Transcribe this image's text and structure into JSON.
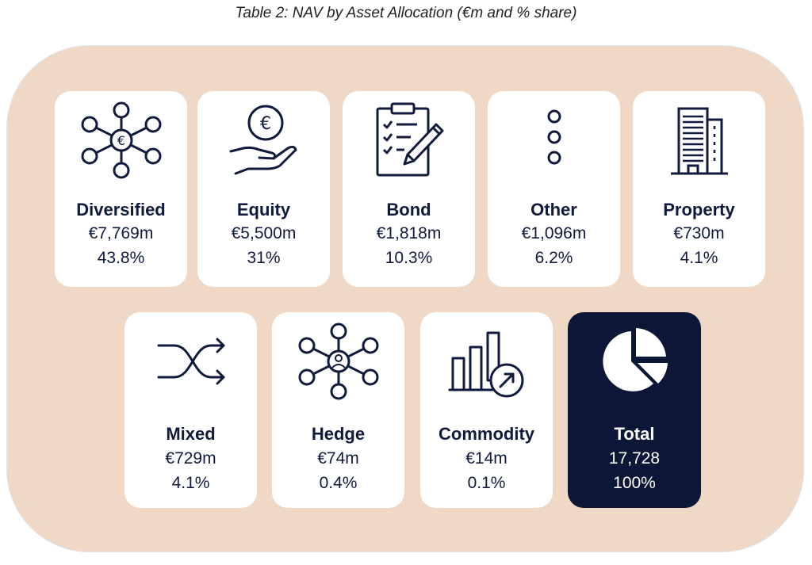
{
  "caption": "Table 2: NAV by Asset Allocation (€m and % share)",
  "colors": {
    "panel": "#efd9c6",
    "card": "#ffffff",
    "navy": "#0c1737",
    "text": "#0f1a3c"
  },
  "cards": [
    {
      "name": "Diversified",
      "value": "€7,769m",
      "share": "43.8%",
      "icon": "network-euro-icon"
    },
    {
      "name": "Equity",
      "value": "€5,500m",
      "share": "31%",
      "icon": "hand-coin-euro-icon"
    },
    {
      "name": "Bond",
      "value": "€1,818m",
      "share": "10.3%",
      "icon": "clipboard-pen-icon"
    },
    {
      "name": "Other",
      "value": "€1,096m",
      "share": "6.2%",
      "icon": "vertical-dots-icon"
    },
    {
      "name": "Property",
      "value": "€730m",
      "share": "4.1%",
      "icon": "building-icon"
    },
    {
      "name": "Mixed",
      "value": "€729m",
      "share": "4.1%",
      "icon": "shuffle-arrows-icon"
    },
    {
      "name": "Hedge",
      "value": "€74m",
      "share": "0.4%",
      "icon": "network-person-icon"
    },
    {
      "name": "Commodity",
      "value": "€14m",
      "share": "0.1%",
      "icon": "bar-chart-arrow-icon"
    },
    {
      "name": "Total",
      "value": "17,728",
      "share": "100%",
      "icon": "pie-chart-icon"
    }
  ]
}
